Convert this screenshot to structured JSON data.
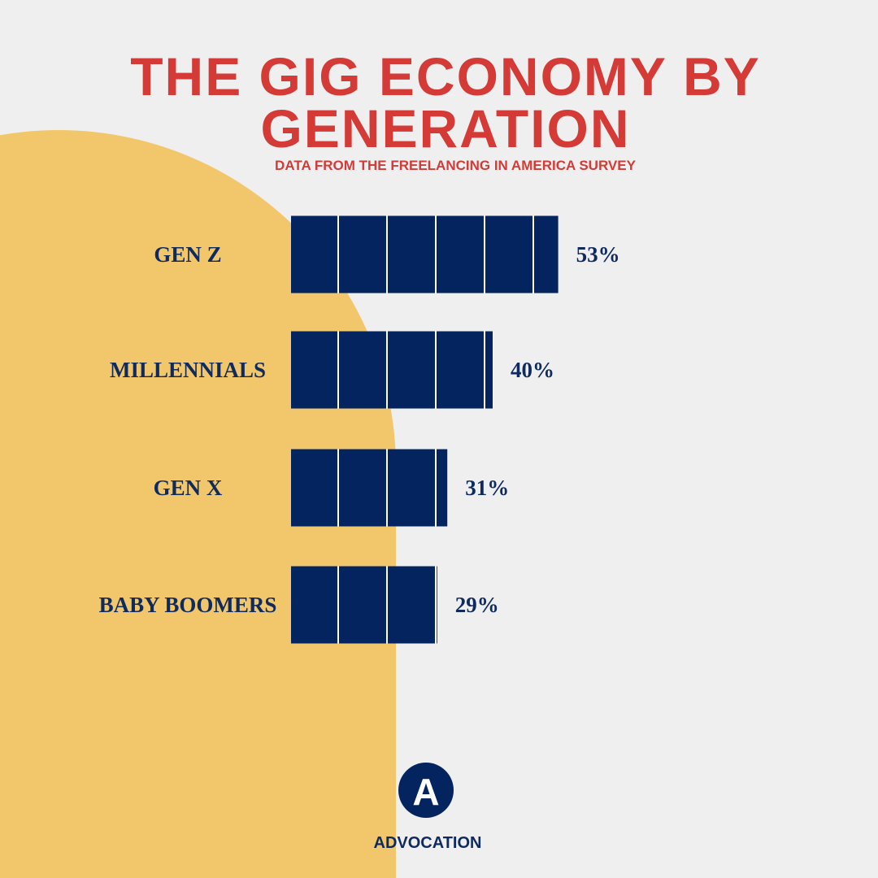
{
  "chart_data": {
    "type": "bar",
    "orientation": "horizontal",
    "title": "THE GIG ECONOMY BY GENERATION",
    "subtitle": "DATA FROM THE FREELANCING IN AMERICA SURVEY",
    "categories": [
      "GEN Z",
      "MILLENNIALS",
      "GEN X",
      "BABY BOOMERS"
    ],
    "values": [
      53,
      40,
      31,
      29
    ],
    "value_labels": [
      "53%",
      "40%",
      "31%",
      "29%"
    ],
    "color": "#03245f"
  },
  "brand": {
    "logo": "A",
    "name": "ADVOCATION"
  }
}
